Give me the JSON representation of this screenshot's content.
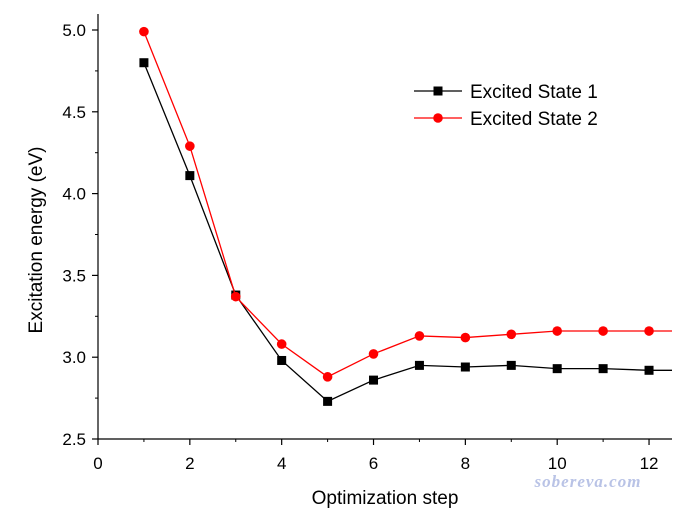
{
  "chart_data": {
    "type": "line",
    "xlabel": "Optimization step",
    "ylabel": "Excitation energy (eV)",
    "xlim": [
      0,
      12.5
    ],
    "ylim": [
      2.5,
      5.1
    ],
    "x_ticks": [
      "0",
      "2",
      "4",
      "6",
      "8",
      "10",
      "12"
    ],
    "y_ticks": [
      "2.5",
      "3.0",
      "3.5",
      "4.0",
      "4.5",
      "5.0"
    ],
    "grid": false,
    "legend_position": "top-right",
    "x": [
      1,
      2,
      3,
      4,
      5,
      6,
      7,
      8,
      9,
      10,
      11,
      12
    ],
    "series": [
      {
        "name": "Excited State 1",
        "color": "#000000",
        "marker": "square",
        "values": [
          4.8,
          4.11,
          3.38,
          2.98,
          2.73,
          2.86,
          2.95,
          2.94,
          2.95,
          2.93,
          2.93,
          2.92
        ],
        "extends_to": 2.92
      },
      {
        "name": "Excited State 2",
        "color": "#ff0000",
        "marker": "circle",
        "values": [
          4.99,
          4.29,
          3.37,
          3.08,
          2.88,
          3.02,
          3.13,
          3.12,
          3.14,
          3.16,
          3.16,
          3.16
        ],
        "extends_to": 3.16
      }
    ]
  },
  "watermark": "sobereva.com"
}
